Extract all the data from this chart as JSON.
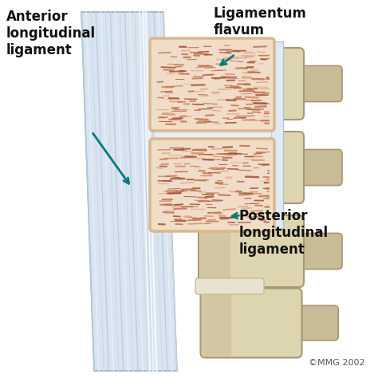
{
  "bg_color": "#ffffff",
  "label_anterior": "Anterior\nlongitudinal\nligament",
  "label_flavum": "Ligamentum\nflavum",
  "label_posterior": "Posterior\nlongitudinal\nligament",
  "copyright": "©MMG 2002",
  "arrow_color": "#007B7B",
  "label_color": "#111111",
  "lig_main_color": "#C8D8E8",
  "lig_stripe_color": "#E8EEF4",
  "lig_edge_color": "#A0B4C8",
  "bone_main": "#C8BC96",
  "bone_light": "#DDD4B0",
  "bone_dark": "#A89870",
  "tissue_bg": "#E8C8A8",
  "tissue_fiber1": "#C07858",
  "tissue_fiber2": "#904838",
  "tissue_fiber3": "#D89878",
  "tissue_border": "#C8906A",
  "disc_color": "#E8E0C8",
  "figsize": [
    4.74,
    4.74
  ],
  "dpi": 100
}
